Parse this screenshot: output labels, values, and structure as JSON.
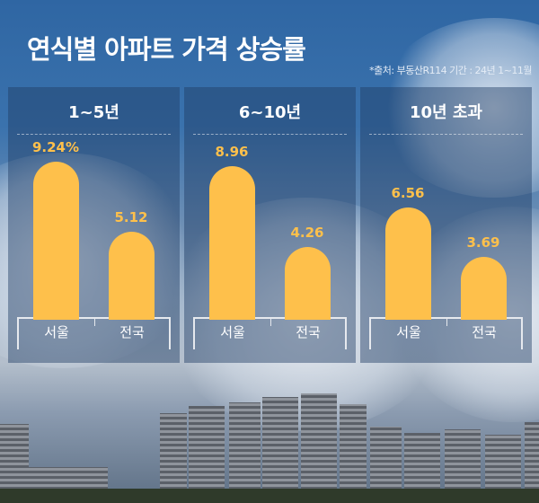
{
  "title": "연식별 아파트 가격 상승률",
  "source": "*출처: 부동산R114 기간 : 24년 1~11월",
  "chart_data": {
    "type": "bar",
    "title": "연식별 아파트 가격 상승률",
    "panels": [
      {
        "label": "1~5년",
        "categories": [
          "서울",
          "전국"
        ],
        "values": [
          9.24,
          5.12
        ],
        "value_labels": [
          "9.24%",
          "5.12"
        ]
      },
      {
        "label": "6~10년",
        "categories": [
          "서울",
          "전국"
        ],
        "values": [
          8.96,
          4.26
        ],
        "value_labels": [
          "8.96",
          "4.26"
        ]
      },
      {
        "label": "10년 초과",
        "categories": [
          "서울",
          "전국"
        ],
        "values": [
          6.56,
          3.69
        ],
        "value_labels": [
          "6.56",
          "3.69"
        ]
      }
    ],
    "bar_color": "#fec04b",
    "ylim": [
      0,
      10
    ],
    "grid": false
  }
}
